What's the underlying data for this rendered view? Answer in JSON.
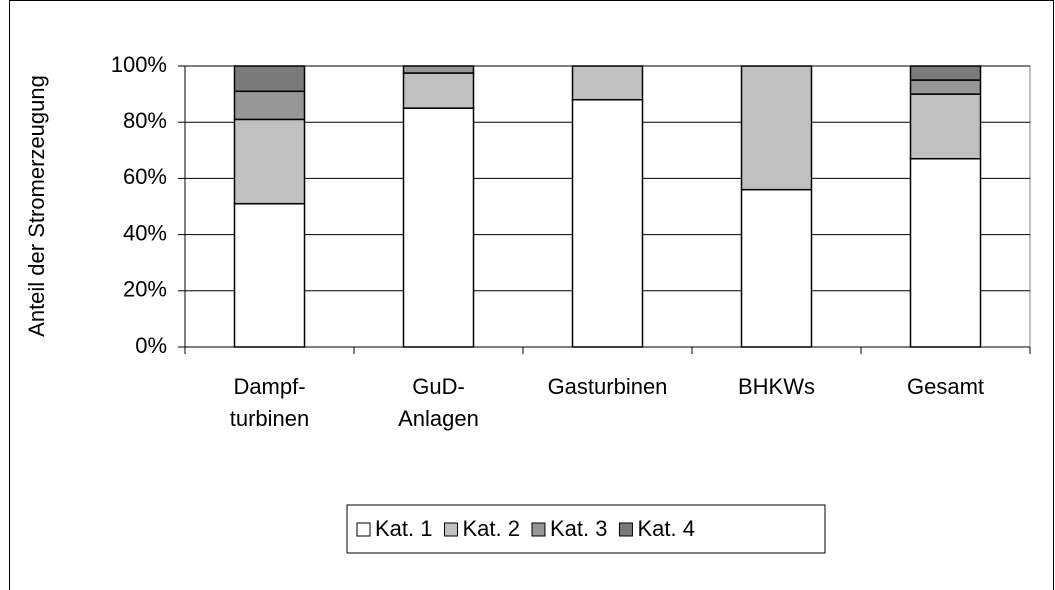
{
  "chart_data": {
    "type": "stacked_bar",
    "y_axis_label": "Anteil der Stromerzeugung",
    "categories": [
      "Dampf-\nturbinen",
      "GuD-\nAnlagen",
      "Gasturbinen",
      "BHKWs",
      "Gesamt"
    ],
    "series": [
      {
        "name": "Kat. 1",
        "color": "#ffffff",
        "values": [
          51,
          85,
          88,
          56,
          67
        ]
      },
      {
        "name": "Kat. 2",
        "color": "#c0c0c0",
        "values": [
          30,
          12.5,
          12,
          44,
          23
        ]
      },
      {
        "name": "Kat. 3",
        "color": "#969696",
        "values": [
          10,
          2.5,
          0,
          0,
          5
        ]
      },
      {
        "name": "Kat. 4",
        "color": "#7a7a7a",
        "values": [
          9,
          0,
          0,
          0,
          5
        ]
      }
    ],
    "ylim": [
      0,
      100
    ],
    "yticks": [
      {
        "value": 0,
        "label": "0%"
      },
      {
        "value": 20,
        "label": "20%"
      },
      {
        "value": 40,
        "label": "40%"
      },
      {
        "value": 60,
        "label": "60%"
      },
      {
        "value": 80,
        "label": "80%"
      },
      {
        "value": 100,
        "label": "100%"
      }
    ],
    "grid": true,
    "legend": "bottom"
  }
}
